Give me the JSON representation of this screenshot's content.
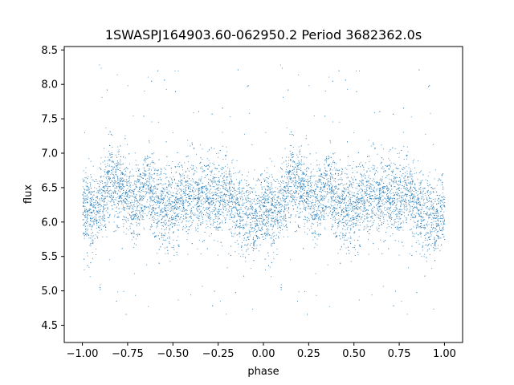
{
  "chart_data": {
    "type": "scatter",
    "title": "1SWASPJ164903.60-062950.2 Period 3682362.0s",
    "xlabel": "phase",
    "ylabel": "flux",
    "xlim": [
      -1.1,
      1.1
    ],
    "ylim": [
      4.25,
      8.55
    ],
    "xticks": [
      -1.0,
      -0.75,
      -0.5,
      -0.25,
      0.0,
      0.25,
      0.5,
      0.75,
      1.0
    ],
    "xtick_labels": [
      "−1.00",
      "−0.75",
      "−0.50",
      "−0.25",
      "0.00",
      "0.25",
      "0.50",
      "0.75",
      "1.00"
    ],
    "yticks": [
      4.5,
      5.0,
      5.5,
      6.0,
      6.5,
      7.0,
      7.5,
      8.0,
      8.5
    ],
    "ytick_labels": [
      "4.5",
      "5.0",
      "5.5",
      "6.0",
      "6.5",
      "7.0",
      "7.5",
      "8.0",
      "8.5"
    ],
    "grid": false,
    "marker_color": "#1f77b4",
    "profile": {
      "description_points_phase": [
        -1.0,
        -0.93,
        -0.85,
        -0.78,
        -0.72,
        -0.65,
        -0.58,
        -0.5,
        -0.42,
        -0.35,
        -0.27,
        -0.2,
        -0.12,
        -0.05,
        0.0
      ],
      "description_points_flux": [
        6.2,
        6.1,
        6.65,
        6.5,
        6.2,
        6.55,
        6.25,
        6.2,
        6.35,
        6.4,
        6.35,
        6.45,
        6.1,
        6.0,
        6.2
      ],
      "scatter": 0.28
    },
    "n_points": 9000
  }
}
